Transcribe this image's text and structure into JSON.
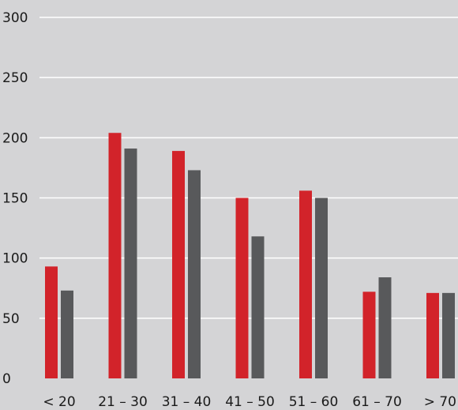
{
  "chart_data": {
    "type": "bar",
    "categories": [
      "< 20",
      "21 – 30",
      "31 – 40",
      "41 – 50",
      "51 – 60",
      "61 – 70",
      "> 70"
    ],
    "series": [
      {
        "color": "#d2232a",
        "values": [
          93,
          204,
          189,
          150,
          156,
          72,
          71
        ]
      },
      {
        "color": "#58595b",
        "values": [
          73,
          191,
          173,
          118,
          150,
          84,
          71
        ]
      }
    ],
    "yticks": [
      "0",
      "50",
      "100",
      "150",
      "200",
      "250",
      "300"
    ],
    "ylim": [
      0,
      300
    ],
    "grid": true,
    "title": "",
    "xlabel": "",
    "ylabel": ""
  }
}
